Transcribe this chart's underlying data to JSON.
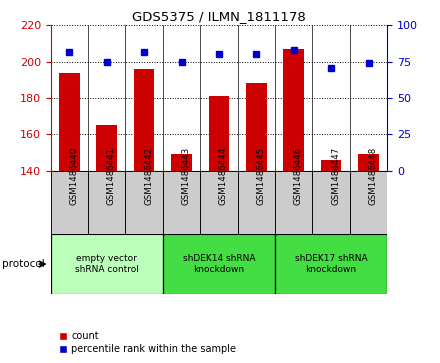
{
  "title": "GDS5375 / ILMN_1811178",
  "samples": [
    "GSM1486440",
    "GSM1486441",
    "GSM1486442",
    "GSM1486443",
    "GSM1486444",
    "GSM1486445",
    "GSM1486446",
    "GSM1486447",
    "GSM1486448"
  ],
  "counts": [
    194,
    165,
    196,
    149,
    181,
    188,
    207,
    146,
    149
  ],
  "percentiles": [
    82,
    75,
    82,
    75,
    80,
    80,
    83,
    71,
    74
  ],
  "ylim_left": [
    140,
    220
  ],
  "yticks_left": [
    140,
    160,
    180,
    200,
    220
  ],
  "ylim_right": [
    0,
    100
  ],
  "yticks_right": [
    0,
    25,
    50,
    75,
    100
  ],
  "bar_color": "#cc0000",
  "dot_color": "#0000cc",
  "bar_bottom": 140,
  "groups": [
    {
      "label": "empty vector\nshRNA control",
      "start": 0,
      "end": 3,
      "color": "#bbffbb"
    },
    {
      "label": "shDEK14 shRNA\nknockdown",
      "start": 3,
      "end": 6,
      "color": "#44dd44"
    },
    {
      "label": "shDEK17 shRNA\nknockdown",
      "start": 6,
      "end": 9,
      "color": "#44dd44"
    }
  ],
  "protocol_label": "protocol",
  "legend_count_label": "count",
  "legend_percentile_label": "percentile rank within the sample",
  "axis_left_color": "#cc0000",
  "axis_right_color": "#0000cc",
  "sample_box_color": "#cccccc",
  "fig_width": 4.4,
  "fig_height": 3.63,
  "dpi": 100
}
